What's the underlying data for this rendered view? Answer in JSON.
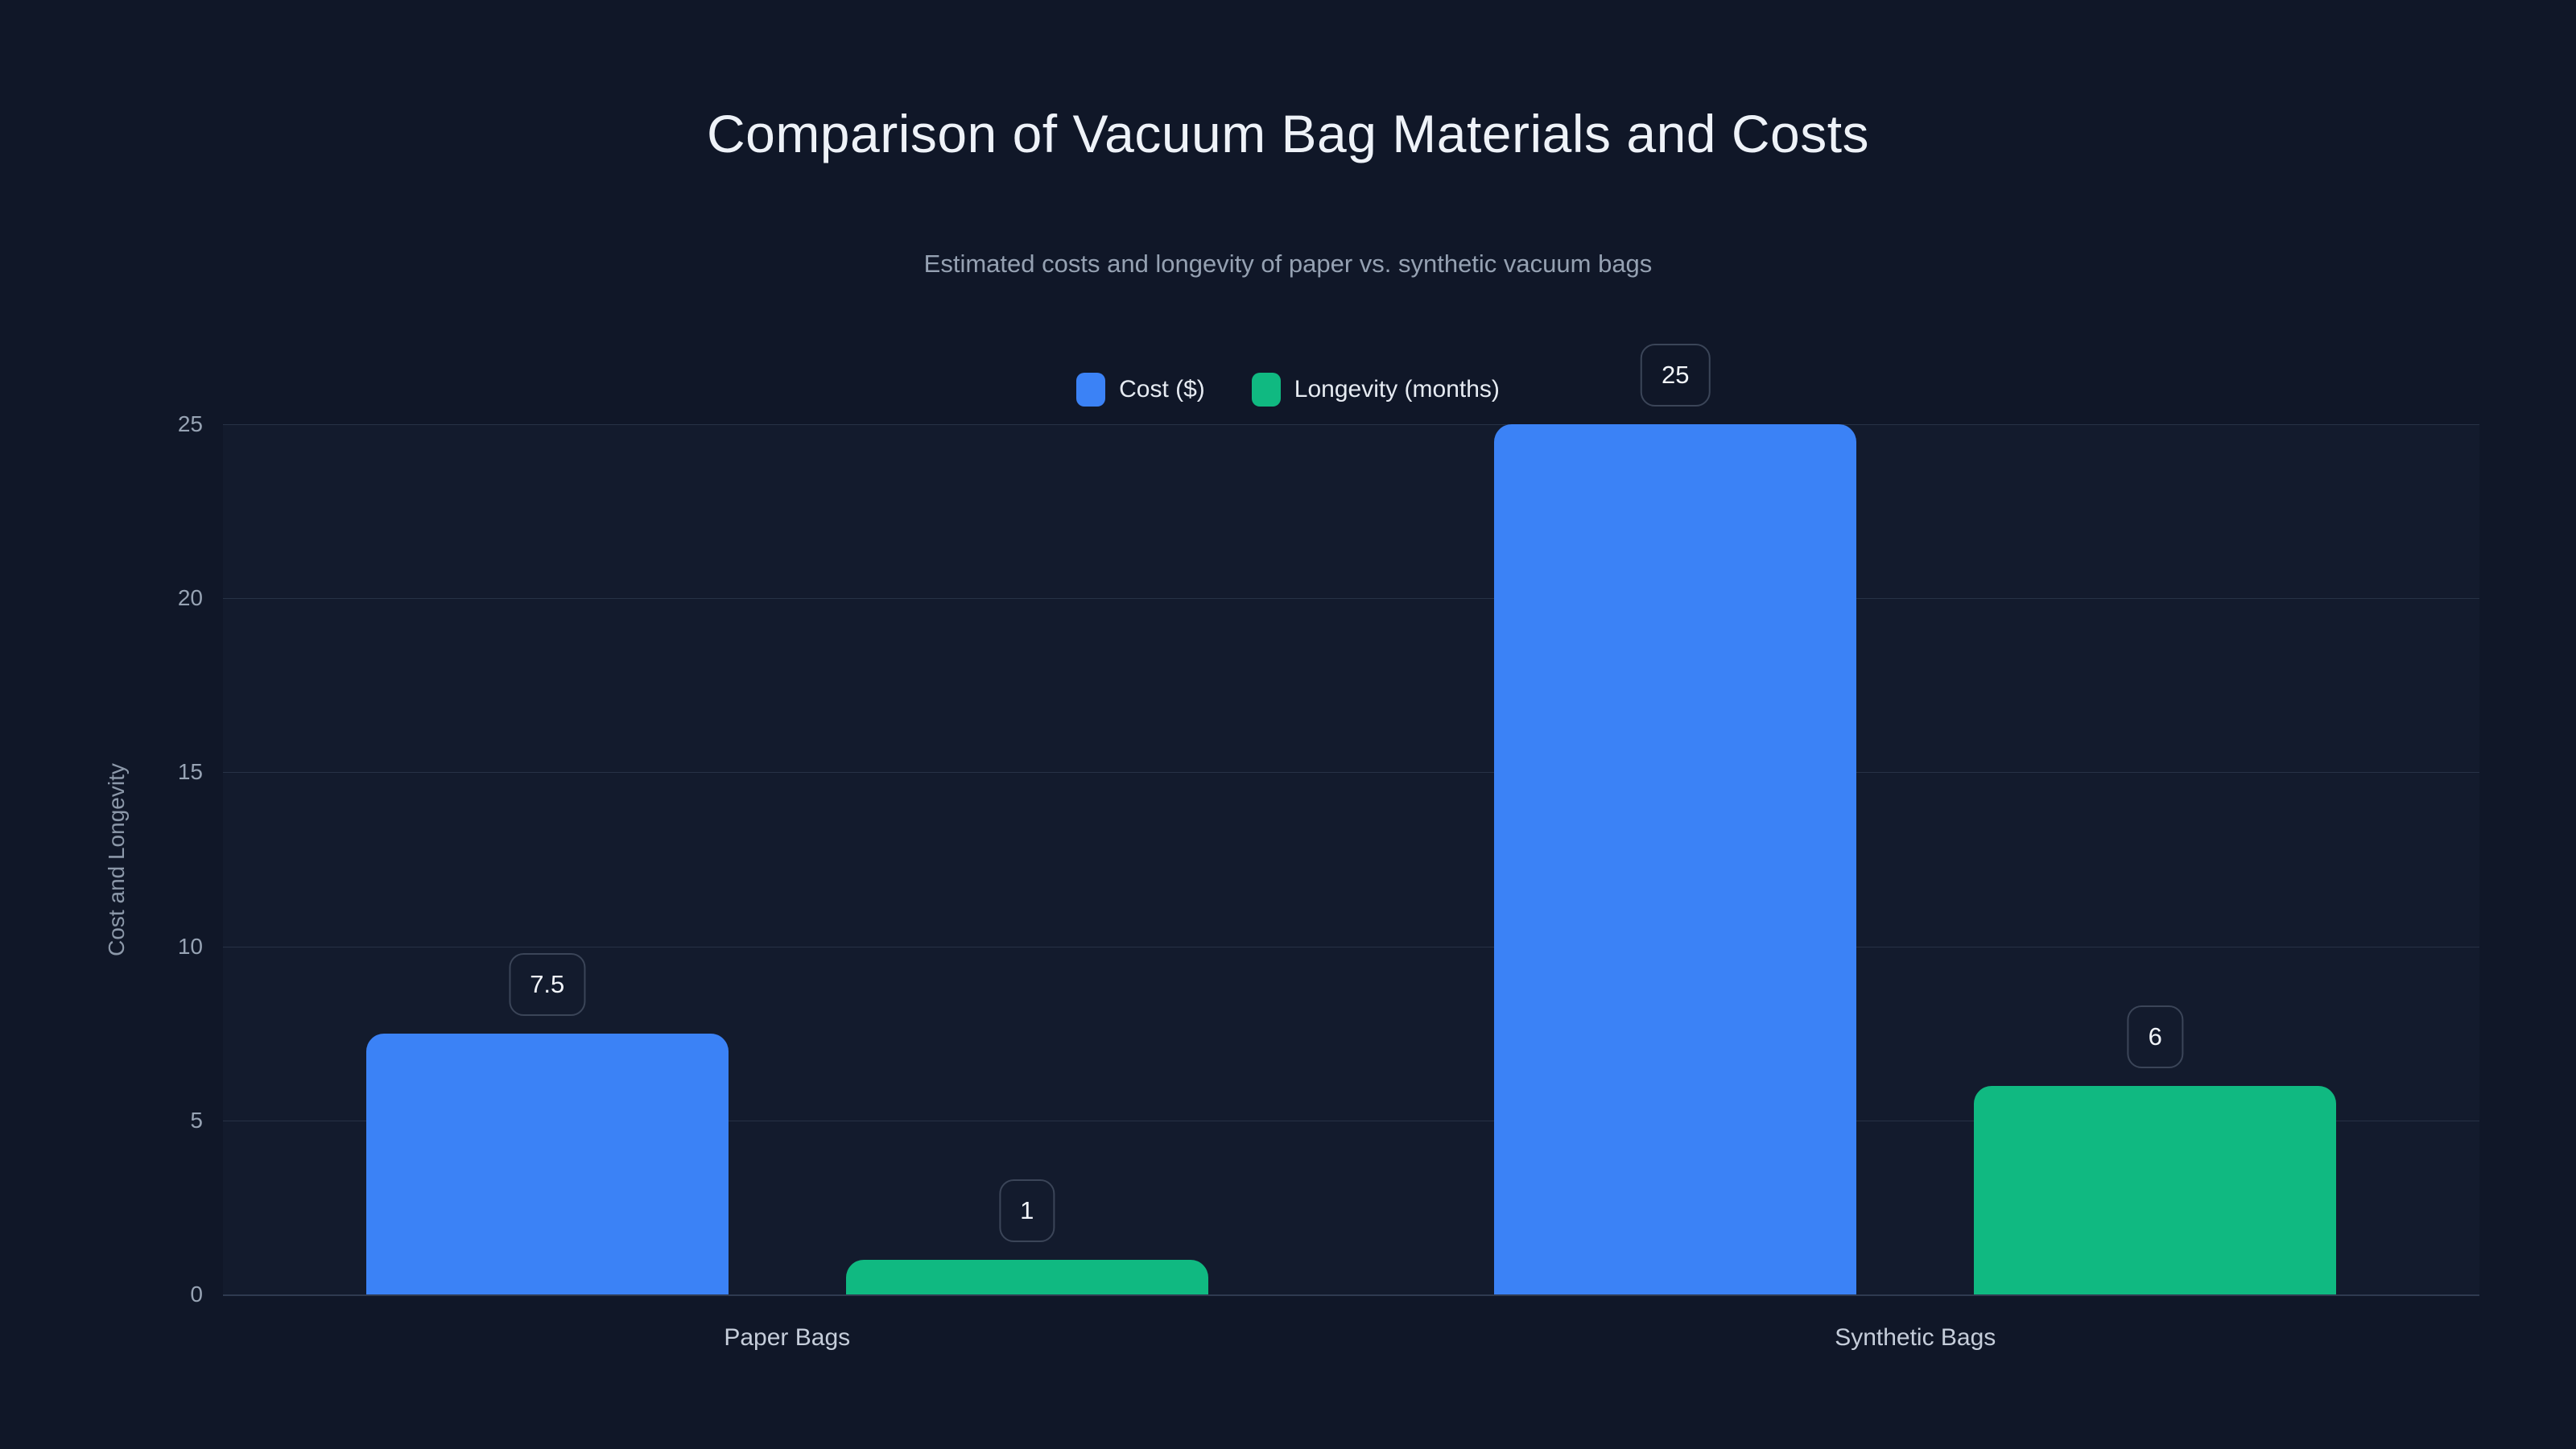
{
  "chart": {
    "background_color": "#101728",
    "plot_background_color": "#131b2d",
    "gridline_color": "#273246",
    "axis_line_color": "#2f3a50"
  },
  "chart_data": {
    "type": "bar",
    "title": "Comparison of Vacuum Bag Materials and Costs",
    "subtitle": "Estimated costs and longevity of paper vs. synthetic vacuum bags",
    "xlabel": "",
    "ylabel": "Cost and Longevity",
    "categories": [
      "Paper Bags",
      "Synthetic Bags"
    ],
    "series": [
      {
        "name": "Cost ($)",
        "color": "#3b82f6",
        "values": [
          7.5,
          25
        ],
        "value_labels": [
          "7.5",
          "25"
        ]
      },
      {
        "name": "Longevity (months)",
        "color": "#10b981",
        "values": [
          1,
          6
        ],
        "value_labels": [
          "1",
          "6"
        ]
      }
    ],
    "ylim": [
      0,
      25
    ],
    "yticks": [
      0,
      5,
      10,
      15,
      20,
      25
    ],
    "ytick_labels": [
      "0",
      "5",
      "10",
      "15",
      "20",
      "25"
    ],
    "grid": true,
    "legend_position": "top",
    "value_labels_shown": true
  }
}
